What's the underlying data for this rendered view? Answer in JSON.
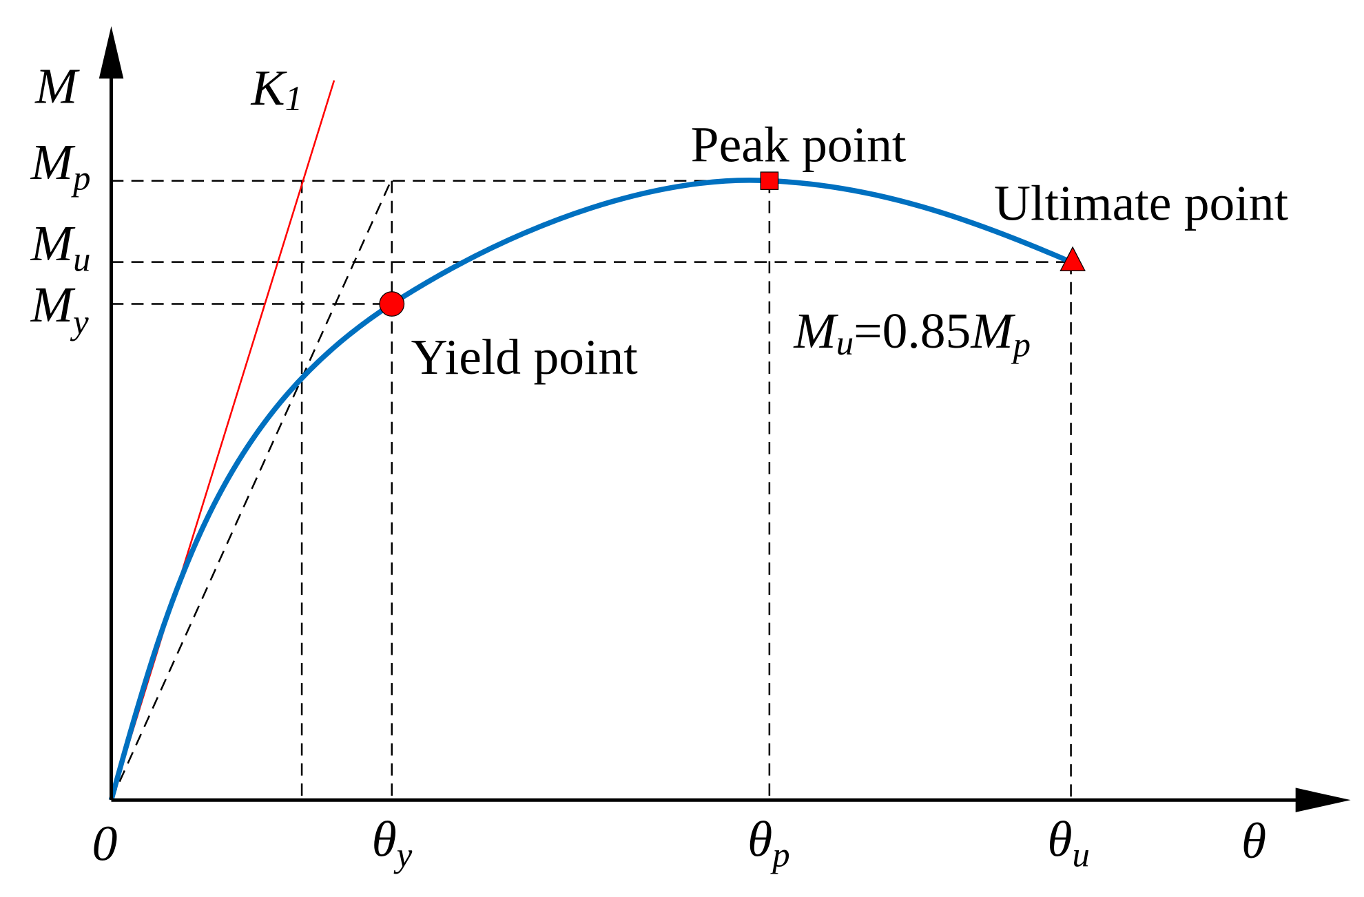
{
  "axes": {
    "y_label": "M",
    "x_label": "θ",
    "origin": "0"
  },
  "y_labels": [
    {
      "main": "M",
      "sub": "p"
    },
    {
      "main": "M",
      "sub": "u"
    },
    {
      "main": "M",
      "sub": "y"
    }
  ],
  "x_labels": [
    {
      "main": "θ",
      "sub": "y"
    },
    {
      "main": "θ",
      "sub": "p"
    },
    {
      "main": "θ",
      "sub": "u"
    }
  ],
  "stiffness_label": {
    "main": "K",
    "sub": "1"
  },
  "points": [
    {
      "label": "Yield point"
    },
    {
      "label": "Peak point"
    },
    {
      "label": "Ultimate point"
    }
  ],
  "formula": {
    "lhs": "M",
    "lhs_sub": "u",
    "middle": "=0.85",
    "rhs": "M",
    "rhs_sub": "p"
  }
}
